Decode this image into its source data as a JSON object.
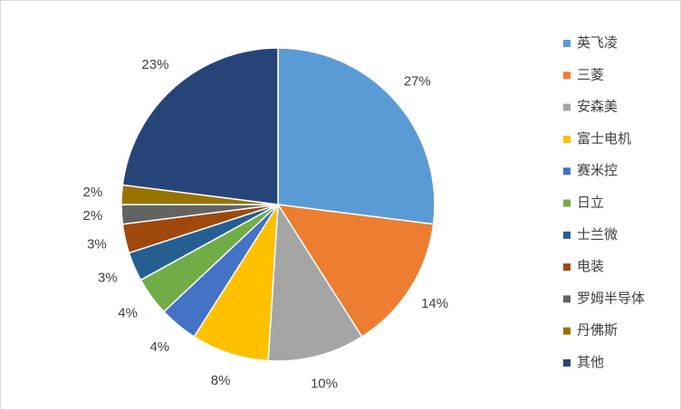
{
  "chart_data": {
    "type": "pie",
    "categories": [
      "英飞凌",
      "三菱",
      "安森美",
      "富士电机",
      "赛米控",
      "日立",
      "士兰微",
      "电装",
      "罗姆半导体",
      "丹佛斯",
      "其他"
    ],
    "values": [
      27,
      14,
      10,
      8,
      4,
      4,
      3,
      3,
      2,
      2,
      23
    ],
    "value_labels": [
      "27%",
      "14%",
      "10%",
      "8%",
      "4%",
      "4%",
      "3%",
      "3%",
      "2%",
      "2%",
      "23%"
    ],
    "colors": [
      "#5b9bd5",
      "#ed7d31",
      "#a5a5a5",
      "#ffc000",
      "#4472c4",
      "#70ad47",
      "#255e91",
      "#9e480e",
      "#636363",
      "#997300",
      "#264478"
    ],
    "legend": "right"
  }
}
